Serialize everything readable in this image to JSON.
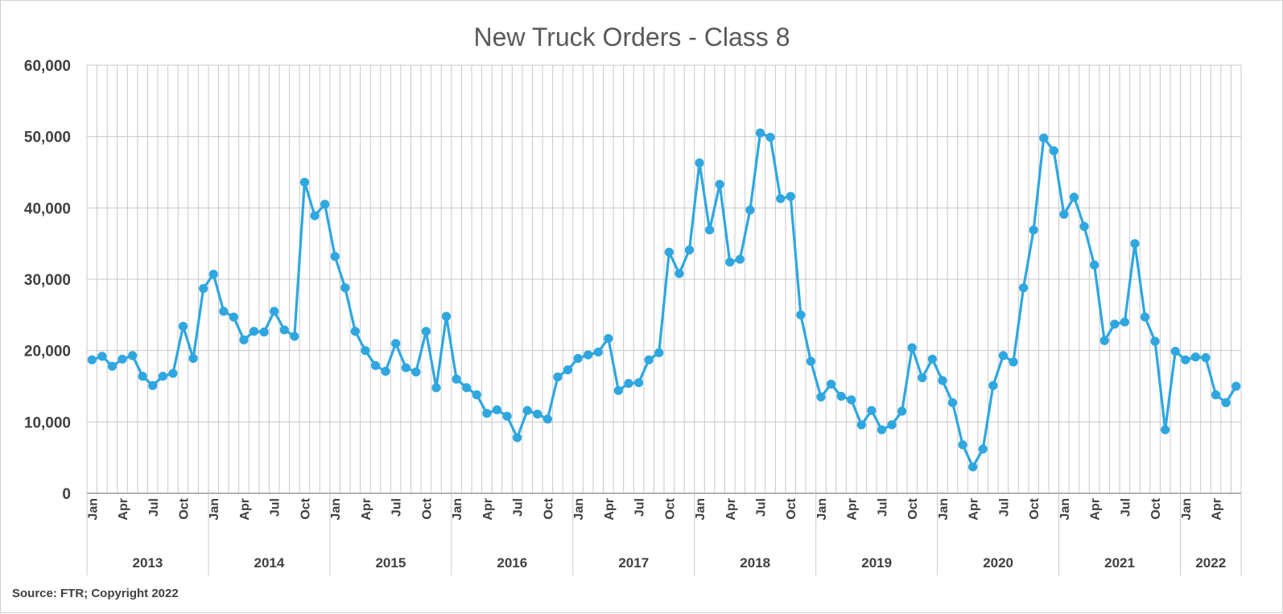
{
  "source_note": "Source: FTR; Copyright 2022",
  "colors": {
    "series": "#2EA7E0",
    "grid": "#c8c8c8",
    "text": "#404040"
  },
  "chart_data": {
    "type": "line",
    "title": "New Truck Orders - Class 8",
    "ylim": [
      0,
      60000
    ],
    "y_ticks": [
      0,
      10000,
      20000,
      30000,
      40000,
      50000,
      60000
    ],
    "y_tick_labels": [
      "0",
      "10,000",
      "20,000",
      "30,000",
      "40,000",
      "50,000",
      "60,000"
    ],
    "grid": true,
    "legend": "none",
    "month_tick_labels": [
      "Jan",
      "Apr",
      "Jul",
      "Oct"
    ],
    "years": [
      {
        "label": "2013",
        "months": 12
      },
      {
        "label": "2014",
        "months": 12
      },
      {
        "label": "2015",
        "months": 12
      },
      {
        "label": "2016",
        "months": 12
      },
      {
        "label": "2017",
        "months": 12
      },
      {
        "label": "2018",
        "months": 12
      },
      {
        "label": "2019",
        "months": 12
      },
      {
        "label": "2020",
        "months": 12
      },
      {
        "label": "2021",
        "months": 12
      },
      {
        "label": "2022",
        "months": 6
      }
    ],
    "series": [
      {
        "values": [
          18700,
          19200,
          17800,
          18800,
          19300,
          16400,
          15100,
          16400,
          16800,
          23400,
          18900,
          28700,
          30700,
          25500,
          24700,
          21500,
          22700,
          22600,
          25500,
          22900,
          22000,
          43600,
          38900,
          40500,
          33200,
          28800,
          22700,
          20000,
          17900,
          17100,
          21000,
          17600,
          17000,
          22700,
          14800,
          24800,
          16000,
          14800,
          13800,
          11200,
          11700,
          10800,
          7800,
          11600,
          11100,
          10400,
          16300,
          17300,
          18900,
          19400,
          19800,
          21700,
          14400,
          15400,
          15500,
          18700,
          19700,
          33800,
          30800,
          34100,
          46300,
          36900,
          43300,
          32400,
          32800,
          39700,
          50500,
          49900,
          41300,
          41600,
          25000,
          18500,
          13500,
          15300,
          13600,
          13100,
          9600,
          11600,
          8900,
          9600,
          11500,
          20400,
          16200,
          18800,
          15800,
          12700,
          6800,
          3700,
          6200,
          15100,
          19300,
          18400,
          28800,
          36900,
          49800,
          48000,
          39100,
          41500,
          37400,
          32000,
          21400,
          23700,
          24000,
          35000,
          24700,
          21300,
          8900,
          19900,
          18700,
          19100,
          19000,
          13800,
          12700,
          15000
        ]
      }
    ]
  }
}
